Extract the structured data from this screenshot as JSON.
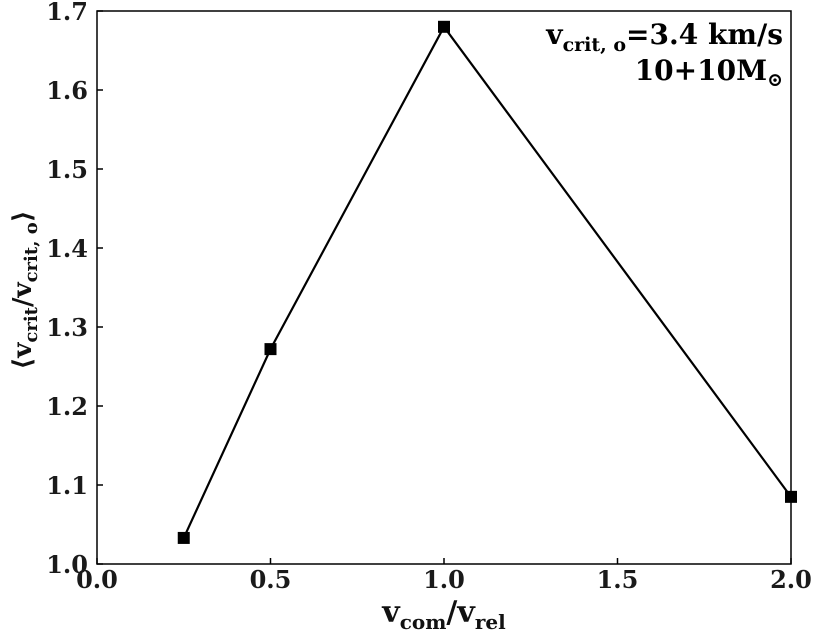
{
  "chart_data": {
    "type": "line",
    "x": [
      0.25,
      0.5,
      1.0,
      2.0
    ],
    "series": [
      {
        "values": [
          1.033,
          1.272,
          1.68,
          1.085
        ]
      }
    ],
    "xlim": [
      0.0,
      2.0
    ],
    "ylim": [
      1.0,
      1.7
    ],
    "xticks": [
      0.0,
      0.5,
      1.0,
      1.5,
      2.0
    ],
    "yticks": [
      1.0,
      1.1,
      1.2,
      1.3,
      1.4,
      1.5,
      1.6,
      1.7
    ],
    "xtick_labels": [
      "0.0",
      "0.5",
      "1.0",
      "1.5",
      "2.0"
    ],
    "ytick_labels": [
      "1.0",
      "1.1",
      "1.2",
      "1.3",
      "1.4",
      "1.5",
      "1.6",
      "1.7"
    ],
    "xlabel": {
      "main1": "v",
      "sub1": "com",
      "slash": "/",
      "main2": "v",
      "sub2": "rel"
    },
    "ylabel": {
      "open": "⟨",
      "main1": "v",
      "sub1": "crit",
      "slash": "/",
      "main2": "v",
      "sub2": "crit, o",
      "close": "⟩"
    },
    "annotation": {
      "line1": {
        "main": "v",
        "sub": "crit, o",
        "rest": "=3.4 km/s"
      },
      "line2": {
        "main": "10+10M",
        "sub": "⊙"
      }
    },
    "marker": "square",
    "grid": false,
    "line_color": "#000000"
  }
}
